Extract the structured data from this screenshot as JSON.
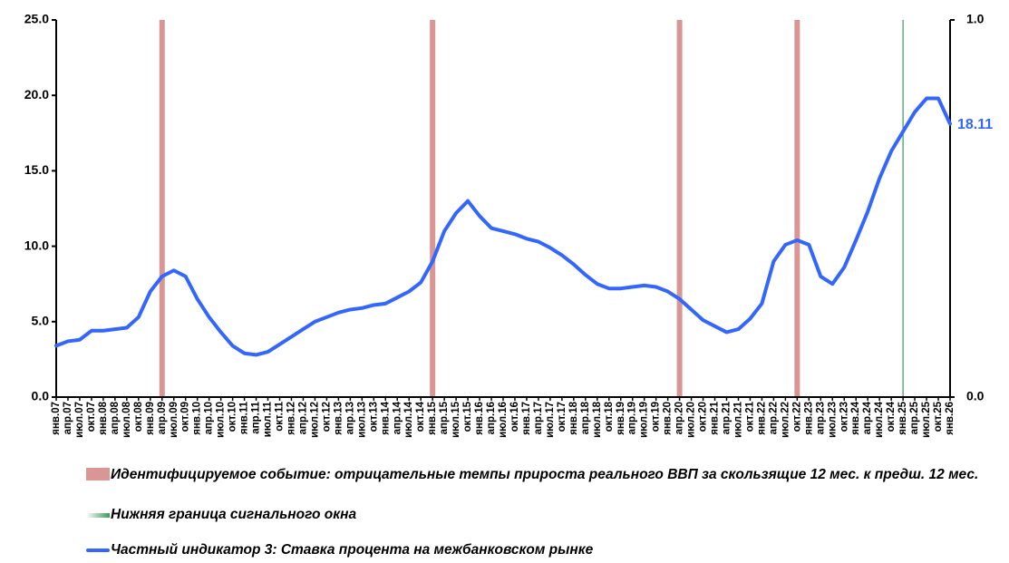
{
  "chart_data": {
    "type": "line",
    "categories": [
      "янв.07",
      "апр.07",
      "июл.07",
      "окт.07",
      "янв.08",
      "апр.08",
      "июл.08",
      "окт.08",
      "янв.09",
      "апр.09",
      "июл.09",
      "окт.09",
      "янв.10",
      "апр.10",
      "июл.10",
      "окт.10",
      "янв.11",
      "апр.11",
      "июл.11",
      "окт.11",
      "янв.12",
      "апр.12",
      "июл.12",
      "окт.12",
      "янв.13",
      "апр.13",
      "июл.13",
      "окт.13",
      "янв.14",
      "апр.14",
      "июл.14",
      "окт.14",
      "янв.15",
      "апр.15",
      "июл.15",
      "окт.15",
      "янв.16",
      "апр.16",
      "июл.16",
      "окт.16",
      "янв.17",
      "апр.17",
      "июл.17",
      "окт.17",
      "янв.18",
      "апр.18",
      "июл.18",
      "окт.18",
      "янв.19",
      "апр.19",
      "июл.19",
      "окт.19",
      "янв.20",
      "апр.20",
      "июл.20",
      "окт.20",
      "янв.21",
      "апр.21",
      "июл.21",
      "окт.21",
      "янв.22",
      "апр.22",
      "июл.22",
      "окт.22",
      "янв.23",
      "апр.23",
      "июл.23",
      "окт.23",
      "янв.24",
      "апр.24",
      "июл.24",
      "окт.24",
      "янв.25",
      "апр.25",
      "июл.25",
      "окт.25",
      "янв.26"
    ],
    "series": [
      {
        "name": "Частный индикатор 3: Ставка процента на межбанковском рынке",
        "color": "#3366ff",
        "values": [
          3.4,
          3.7,
          3.8,
          4.4,
          4.4,
          4.5,
          4.6,
          5.3,
          7.0,
          8.0,
          8.4,
          8.0,
          6.5,
          5.3,
          4.3,
          3.4,
          2.9,
          2.8,
          3.0,
          3.5,
          4.0,
          4.5,
          5.0,
          5.3,
          5.6,
          5.8,
          5.9,
          6.1,
          6.2,
          6.6,
          7.0,
          7.6,
          9.0,
          11.0,
          12.2,
          13.0,
          12.0,
          11.2,
          11.0,
          10.8,
          10.5,
          10.3,
          9.9,
          9.4,
          8.8,
          8.1,
          7.5,
          7.2,
          7.2,
          7.3,
          7.4,
          7.3,
          7.0,
          6.5,
          5.8,
          5.1,
          4.7,
          4.3,
          4.5,
          5.2,
          6.2,
          9.0,
          10.1,
          10.4,
          10.1,
          8.0,
          7.5,
          8.6,
          10.4,
          12.3,
          14.5,
          16.3,
          17.6,
          18.9,
          19.8,
          19.8,
          18.11
        ]
      }
    ],
    "event_markers": {
      "name": "Идентифицируемое событие: отрицательные темпы прироста реального ВВП за скользящие 12 мес. к предш. 12 мес.",
      "color": "#d99694",
      "at": [
        "апр.09",
        "янв.15",
        "апр.20",
        "окт.22"
      ]
    },
    "signal_window": {
      "name": "Нижняя граница сигнального окна",
      "color": "#3a9a5a",
      "at": "янв.25"
    },
    "ylim": [
      0,
      25
    ],
    "yticks": [
      {
        "value": 0,
        "label": "0.0"
      },
      {
        "value": 5,
        "label": "5.0"
      },
      {
        "value": 10,
        "label": "10.0"
      },
      {
        "value": 15,
        "label": "15.0"
      },
      {
        "value": 20,
        "label": "20.0"
      },
      {
        "value": 25,
        "label": "25.0"
      }
    ],
    "y2lim": [
      0,
      1
    ],
    "y2ticks": [
      {
        "value": 0,
        "label": "0.0"
      },
      {
        "value": 1,
        "label": "1.0"
      }
    ]
  }
}
